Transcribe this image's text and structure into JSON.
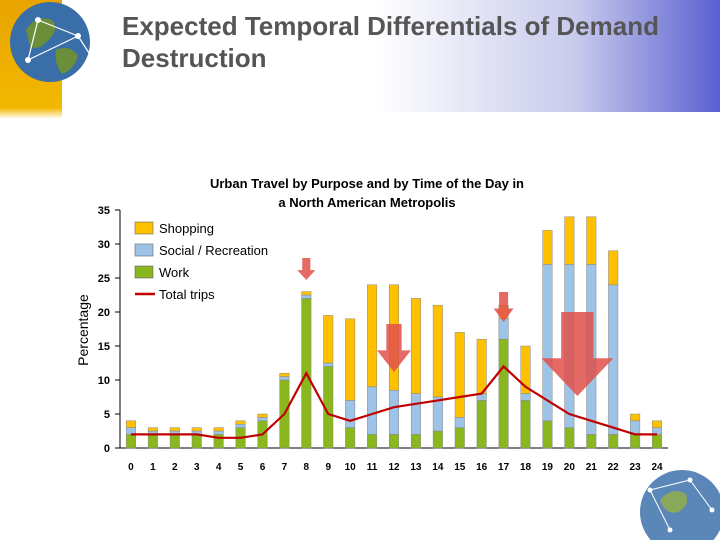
{
  "slide": {
    "title": "Expected Temporal Differentials of Demand Destruction"
  },
  "colors": {
    "shopping": "#ffc000",
    "social": "#9dc3e6",
    "work": "#8ab61e",
    "total": "#c00000",
    "arrow": "#e0504a"
  },
  "chart_data": {
    "type": "bar",
    "stacked": true,
    "title": "Urban Travel by Purpose and by Time of the Day in a North American Metropolis",
    "xlabel": "",
    "ylabel": "Percentage",
    "ylim": [
      0,
      35
    ],
    "yticks": [
      0,
      5,
      10,
      15,
      20,
      25,
      30,
      35
    ],
    "categories": [
      "0",
      "1",
      "2",
      "3",
      "4",
      "5",
      "6",
      "7",
      "8",
      "9",
      "10",
      "11",
      "12",
      "13",
      "14",
      "15",
      "16",
      "17",
      "18",
      "19",
      "20",
      "21",
      "22",
      "23",
      "24"
    ],
    "series": [
      {
        "name": "Work",
        "kind": "bar",
        "values": [
          2,
          2,
          2,
          2,
          2,
          3,
          4,
          10,
          22,
          12,
          3,
          2,
          2,
          2,
          2.5,
          3,
          7,
          16,
          7,
          4,
          3,
          2,
          2,
          2,
          2
        ]
      },
      {
        "name": "Social / Recreation",
        "kind": "bar",
        "values": [
          1,
          0.5,
          0.5,
          0.5,
          0.5,
          0.5,
          0.5,
          0.5,
          0.5,
          0.5,
          4,
          7,
          6.5,
          6,
          5,
          1.5,
          1,
          3,
          1,
          23,
          24,
          25,
          22,
          2,
          1
        ]
      },
      {
        "name": "Shopping",
        "kind": "bar",
        "values": [
          1,
          0.5,
          0.5,
          0.5,
          0.5,
          0.5,
          0.5,
          0.5,
          0.5,
          7,
          12,
          15,
          15.5,
          14,
          13.5,
          12.5,
          8,
          2,
          7,
          5,
          7,
          7,
          5,
          1,
          1
        ]
      },
      {
        "name": "Total trips",
        "kind": "line",
        "values": [
          2,
          2,
          2,
          2,
          1.5,
          1.5,
          2,
          5,
          11,
          5,
          4,
          5,
          6,
          6.5,
          7,
          7.5,
          8,
          12,
          9,
          7,
          5,
          4,
          3,
          2,
          2
        ]
      }
    ],
    "legend": {
      "position": "top-left",
      "entries": [
        "Shopping",
        "Social / Recreation",
        "Work",
        "Total trips"
      ]
    },
    "annotations": [
      {
        "type": "down-arrow",
        "category": "8"
      },
      {
        "type": "down-arrow",
        "category": "12"
      },
      {
        "type": "down-arrow",
        "category": "17"
      },
      {
        "type": "down-arrow",
        "category": "20"
      }
    ]
  }
}
